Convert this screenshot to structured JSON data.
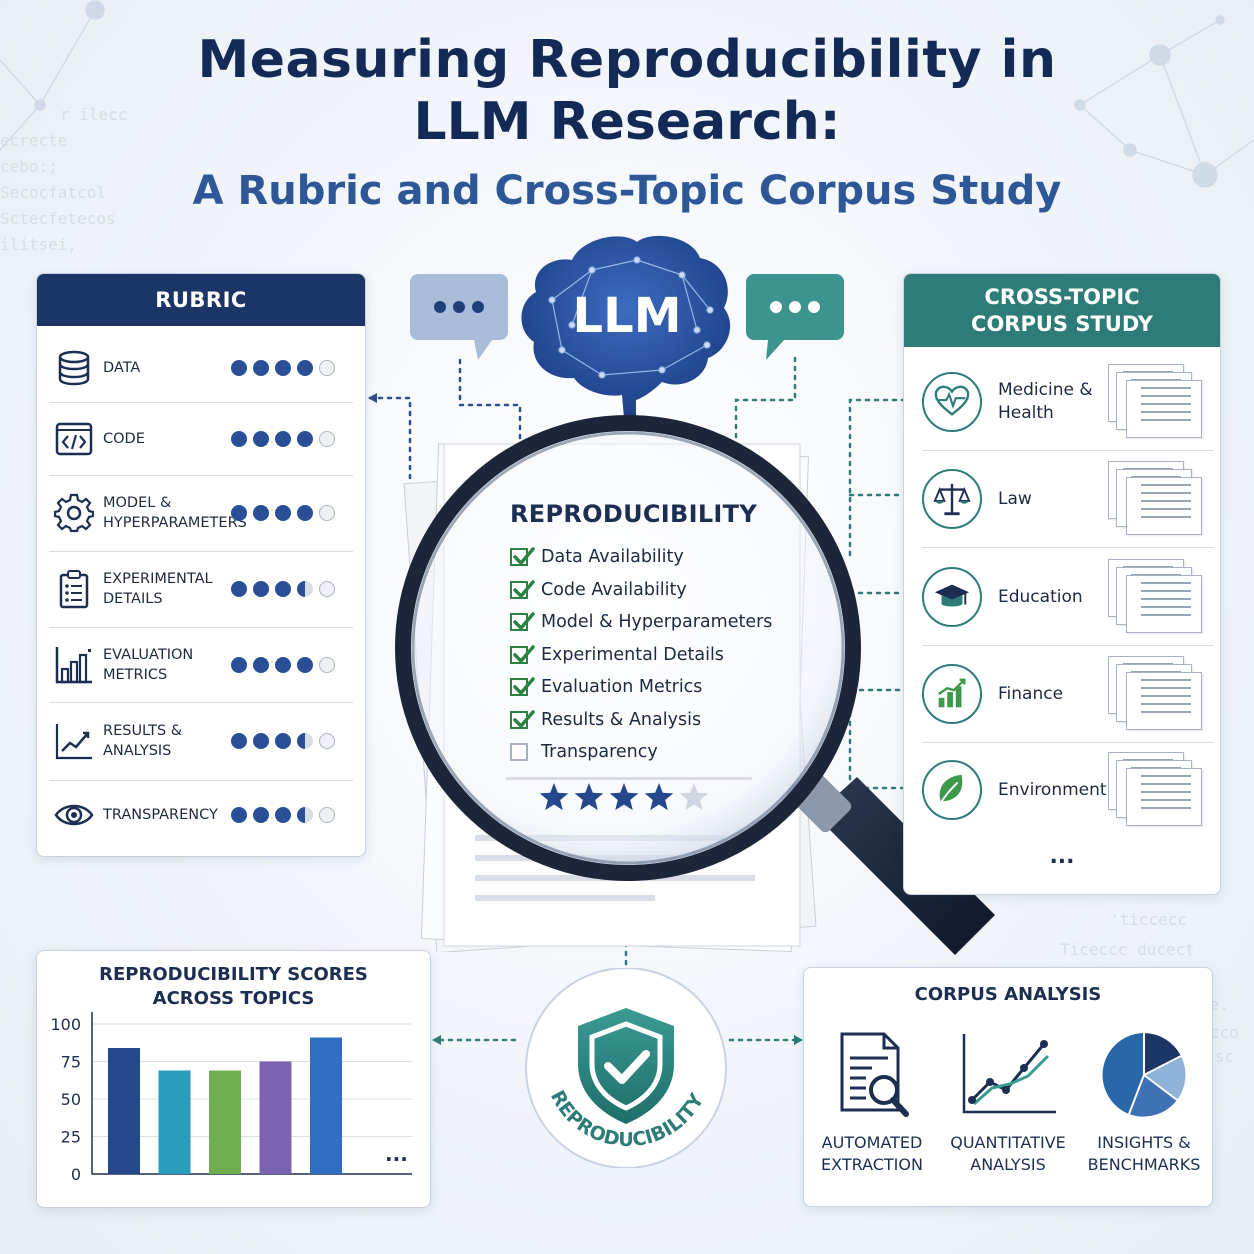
{
  "title": {
    "line1": "Measuring Reproducibility in",
    "line2": "LLM Research:",
    "subtitle": "A Rubric and Cross-Topic Corpus Study"
  },
  "colors": {
    "navy": "#1b3566",
    "teal": "#2d7c78",
    "dot_filled": "#2a4f96",
    "check_green": "#2a8440"
  },
  "center": {
    "brain_label": "LLM",
    "checklist_title": "REPRODUCIBILITY",
    "checklist": [
      {
        "label": "Data Availability",
        "checked": true
      },
      {
        "label": "Code Availability",
        "checked": true
      },
      {
        "label": "Model & Hyperparameters",
        "checked": true
      },
      {
        "label": "Experimental Details",
        "checked": true
      },
      {
        "label": "Evaluation Metrics",
        "checked": true
      },
      {
        "label": "Results & Analysis",
        "checked": true
      },
      {
        "label": "Transparency",
        "checked": false
      }
    ],
    "rating": {
      "filled": 4,
      "total": 5
    },
    "badge_text": "REPRODUCIBILITY"
  },
  "rubric": {
    "header": "RUBRIC",
    "items": [
      {
        "label": "DATA",
        "icon": "database-icon",
        "score": 4
      },
      {
        "label": "CODE",
        "icon": "code-icon",
        "score": 4
      },
      {
        "label": "MODEL & HYPERPARAMETERS",
        "icon": "gear-icon",
        "score": 4
      },
      {
        "label": "EXPERIMENTAL DETAILS",
        "icon": "clipboard-icon",
        "score": 3.5
      },
      {
        "label": "EVALUATION METRICS",
        "icon": "bar-chart-icon",
        "score": 4
      },
      {
        "label": "RESULTS & ANALYSIS",
        "icon": "line-chart-icon",
        "score": 3.5
      },
      {
        "label": "TRANSPARENCY",
        "icon": "eye-icon",
        "score": 3.5
      }
    ]
  },
  "corpus_study": {
    "header_line1": "CROSS-TOPIC",
    "header_line2": "CORPUS STUDY",
    "topics": [
      {
        "label": "Medicine & Health",
        "icon": "heart-pulse-icon"
      },
      {
        "label": "Law",
        "icon": "scales-icon"
      },
      {
        "label": "Education",
        "icon": "graduation-cap-icon"
      },
      {
        "label": "Finance",
        "icon": "growth-chart-icon"
      },
      {
        "label": "Environment",
        "icon": "leaf-icon"
      }
    ],
    "more": "..."
  },
  "chart_data": {
    "type": "bar",
    "title": "REPRODUCIBILITY SCORES ACROSS TOPICS",
    "title_line1": "REPRODUCIBILITY SCORES",
    "title_line2": "ACROSS TOPICS",
    "categories": [
      "",
      "",
      "",
      "",
      ""
    ],
    "values": [
      84,
      69,
      69,
      75,
      91
    ],
    "colors": [
      "#26488a",
      "#2b9cbb",
      "#6fae4f",
      "#7a63b0",
      "#2f6ec0"
    ],
    "yticks": [
      "100",
      "75",
      "50",
      "25",
      "0"
    ],
    "ylim": [
      0,
      100
    ],
    "grid": true,
    "more": "..."
  },
  "corpus_analysis": {
    "title": "CORPUS ANALYSIS",
    "items": [
      {
        "line1": "AUTOMATED",
        "line2": "EXTRACTION",
        "icon": "document-search-icon"
      },
      {
        "line1": "QUANTITATIVE",
        "line2": "ANALYSIS",
        "icon": "line-graph-icon"
      },
      {
        "line1": "INSIGHTS &",
        "line2": "BENCHMARKS",
        "icon": "pie-chart-icon"
      }
    ]
  }
}
